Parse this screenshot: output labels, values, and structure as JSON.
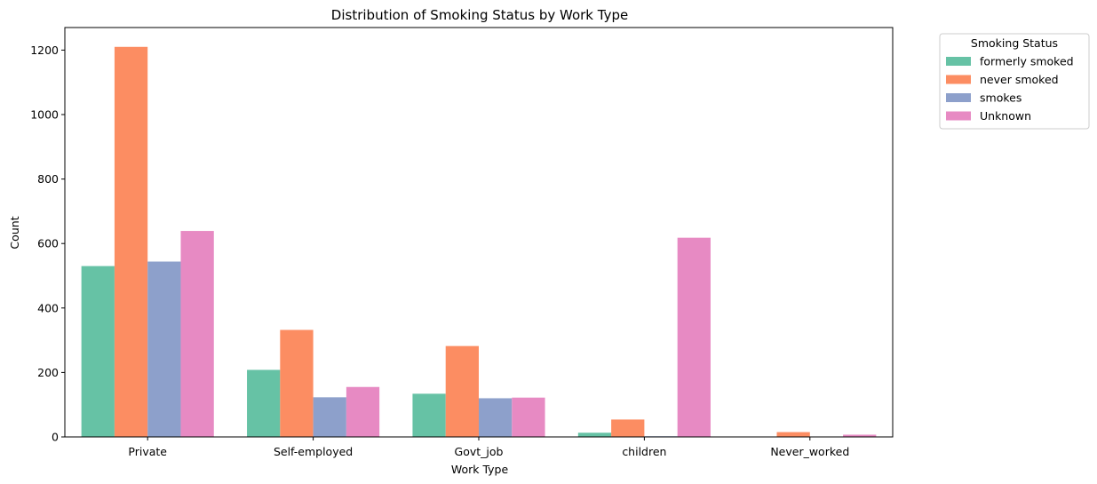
{
  "chart_data": {
    "type": "bar",
    "title": "Distribution of Smoking Status by Work Type",
    "xlabel": "Work Type",
    "ylabel": "Count",
    "categories": [
      "Private",
      "Self-employed",
      "Govt_job",
      "children",
      "Never_worked"
    ],
    "ylim": [
      0,
      1270
    ],
    "yticks": [
      0,
      200,
      400,
      600,
      800,
      1000,
      1200
    ],
    "grid": false,
    "legend": {
      "title": "Smoking Status",
      "placement": "outside-top-right"
    },
    "series": [
      {
        "name": "formerly smoked",
        "color": "#66c2a5",
        "values": [
          530,
          208,
          134,
          13,
          0
        ]
      },
      {
        "name": "never smoked",
        "color": "#fc8d62",
        "values": [
          1210,
          332,
          282,
          54,
          15
        ]
      },
      {
        "name": "smokes",
        "color": "#8da0cb",
        "values": [
          544,
          123,
          120,
          2,
          0
        ]
      },
      {
        "name": "Unknown",
        "color": "#e78ac3",
        "values": [
          639,
          155,
          122,
          618,
          7
        ]
      }
    ]
  }
}
